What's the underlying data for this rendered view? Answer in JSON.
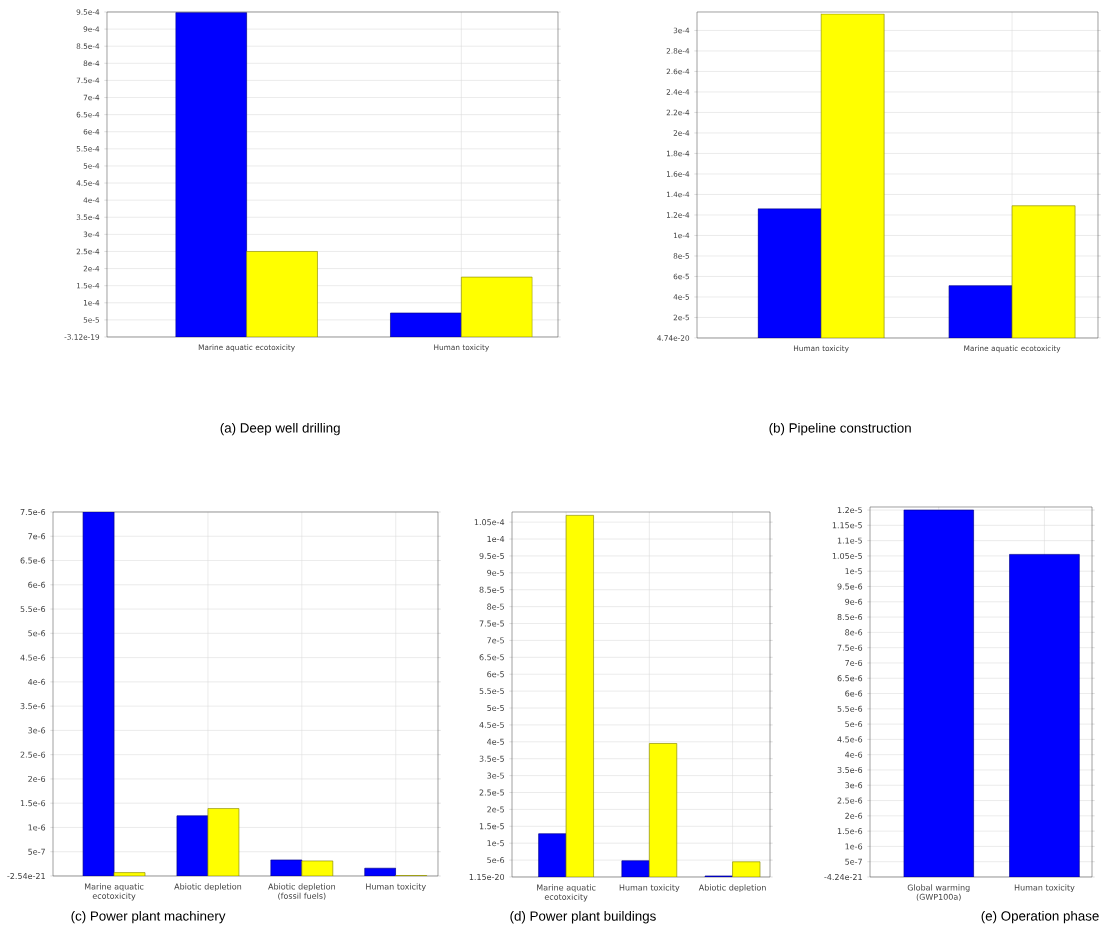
{
  "chart_data": [
    {
      "type": "bar",
      "title": "(a) Deep well drilling",
      "categories": [
        "Marine aquatic ecotoxicity",
        "Human toxicity"
      ],
      "series": [
        {
          "color": "#0000ff",
          "values": [
            0.000948,
            7e-05
          ]
        },
        {
          "color": "#ffff00",
          "values": [
            0.00025,
            0.000175
          ]
        }
      ],
      "ylim": [
        -3.12e-19,
        0.00095
      ],
      "yticks": [
        {
          "value": -3.12e-19,
          "label": "-3.12e-19"
        },
        {
          "value": 5e-05,
          "label": "5e-5"
        },
        {
          "value": 0.0001,
          "label": "1e-4"
        },
        {
          "value": 0.00015,
          "label": "1.5e-4"
        },
        {
          "value": 0.0002,
          "label": "2e-4"
        },
        {
          "value": 0.00025,
          "label": "2.5e-4"
        },
        {
          "value": 0.0003,
          "label": "3e-4"
        },
        {
          "value": 0.00035,
          "label": "3.5e-4"
        },
        {
          "value": 0.0004,
          "label": "4e-4"
        },
        {
          "value": 0.00045,
          "label": "4.5e-4"
        },
        {
          "value": 0.0005,
          "label": "5e-4"
        },
        {
          "value": 0.00055,
          "label": "5.5e-4"
        },
        {
          "value": 0.0006,
          "label": "6e-4"
        },
        {
          "value": 0.00065,
          "label": "6.5e-4"
        },
        {
          "value": 0.0007,
          "label": "7e-4"
        },
        {
          "value": 0.00075,
          "label": "7.5e-4"
        },
        {
          "value": 0.0008,
          "label": "8e-4"
        },
        {
          "value": 0.00085,
          "label": "8.5e-4"
        },
        {
          "value": 0.0009,
          "label": "9e-4"
        },
        {
          "value": 0.00095,
          "label": "9.5e-4"
        }
      ],
      "grid": true
    },
    {
      "type": "bar",
      "title": "(b) Pipeline construction",
      "categories": [
        "Human toxicity",
        "Marine aquatic ecotoxicity"
      ],
      "series": [
        {
          "color": "#0000ff",
          "values": [
            0.000126,
            5.1e-05
          ]
        },
        {
          "color": "#ffff00",
          "values": [
            0.000316,
            0.000129
          ]
        }
      ],
      "ylim": [
        4.74e-20,
        0.000318
      ],
      "yticks": [
        {
          "value": 4.74e-20,
          "label": "4.74e-20"
        },
        {
          "value": 2e-05,
          "label": "2e-5"
        },
        {
          "value": 4e-05,
          "label": "4e-5"
        },
        {
          "value": 6e-05,
          "label": "6e-5"
        },
        {
          "value": 8e-05,
          "label": "8e-5"
        },
        {
          "value": 0.0001,
          "label": "1e-4"
        },
        {
          "value": 0.00012,
          "label": "1.2e-4"
        },
        {
          "value": 0.00014,
          "label": "1.4e-4"
        },
        {
          "value": 0.00016,
          "label": "1.6e-4"
        },
        {
          "value": 0.00018,
          "label": "1.8e-4"
        },
        {
          "value": 0.0002,
          "label": "2e-4"
        },
        {
          "value": 0.00022,
          "label": "2.2e-4"
        },
        {
          "value": 0.00024,
          "label": "2.4e-4"
        },
        {
          "value": 0.00026,
          "label": "2.6e-4"
        },
        {
          "value": 0.00028,
          "label": "2.8e-4"
        },
        {
          "value": 0.0003,
          "label": "3e-4"
        }
      ],
      "grid": true
    },
    {
      "type": "bar",
      "title": "(c) Power plant machinery",
      "categories": [
        "Marine aquatic ecotoxicity",
        "Abiotic depletion",
        "Abiotic depletion (fossil fuels)",
        "Human toxicity"
      ],
      "series": [
        {
          "color": "#0000ff",
          "values": [
            7.5e-06,
            1.24e-06,
            3.3e-07,
            1.6e-07
          ]
        },
        {
          "color": "#ffff00",
          "values": [
            7e-08,
            1.39e-06,
            3.1e-07,
            1e-08
          ]
        }
      ],
      "ylim": [
        -2.54e-21,
        7.5e-06
      ],
      "yticks": [
        {
          "value": -2.54e-21,
          "label": "-2.54e-21"
        },
        {
          "value": 5e-07,
          "label": "5e-7"
        },
        {
          "value": 1e-06,
          "label": "1e-6"
        },
        {
          "value": 1.5e-06,
          "label": "1.5e-6"
        },
        {
          "value": 2e-06,
          "label": "2e-6"
        },
        {
          "value": 2.5e-06,
          "label": "2.5e-6"
        },
        {
          "value": 3e-06,
          "label": "3e-6"
        },
        {
          "value": 3.5e-06,
          "label": "3.5e-6"
        },
        {
          "value": 4e-06,
          "label": "4e-6"
        },
        {
          "value": 4.5e-06,
          "label": "4.5e-6"
        },
        {
          "value": 5e-06,
          "label": "5e-6"
        },
        {
          "value": 5.5e-06,
          "label": "5.5e-6"
        },
        {
          "value": 6e-06,
          "label": "6e-6"
        },
        {
          "value": 6.5e-06,
          "label": "6.5e-6"
        },
        {
          "value": 7e-06,
          "label": "7e-6"
        },
        {
          "value": 7.5e-06,
          "label": "7.5e-6"
        }
      ],
      "grid": true
    },
    {
      "type": "bar",
      "title": "(d) Power plant buildings",
      "categories": [
        "Marine aquatic ecotoxicity",
        "Human toxicity",
        "Abiotic depletion"
      ],
      "series": [
        {
          "color": "#0000ff",
          "values": [
            1.28e-05,
            4.8e-06,
            3e-07
          ]
        },
        {
          "color": "#ffff00",
          "values": [
            0.000107,
            3.95e-05,
            4.5e-06
          ]
        }
      ],
      "ylim": [
        1.15e-20,
        0.000108
      ],
      "yticks": [
        {
          "value": 1.15e-20,
          "label": "1.15e-20"
        },
        {
          "value": 5e-06,
          "label": "5e-6"
        },
        {
          "value": 1e-05,
          "label": "1e-5"
        },
        {
          "value": 1.5e-05,
          "label": "1.5e-5"
        },
        {
          "value": 2e-05,
          "label": "2e-5"
        },
        {
          "value": 2.5e-05,
          "label": "2.5e-5"
        },
        {
          "value": 3e-05,
          "label": "3e-5"
        },
        {
          "value": 3.5e-05,
          "label": "3.5e-5"
        },
        {
          "value": 4e-05,
          "label": "4e-5"
        },
        {
          "value": 4.5e-05,
          "label": "4.5e-5"
        },
        {
          "value": 5e-05,
          "label": "5e-5"
        },
        {
          "value": 5.5e-05,
          "label": "5.5e-5"
        },
        {
          "value": 6e-05,
          "label": "6e-5"
        },
        {
          "value": 6.5e-05,
          "label": "6.5e-5"
        },
        {
          "value": 7e-05,
          "label": "7e-5"
        },
        {
          "value": 7.5e-05,
          "label": "7.5e-5"
        },
        {
          "value": 8e-05,
          "label": "8e-5"
        },
        {
          "value": 8.5e-05,
          "label": "8.5e-5"
        },
        {
          "value": 9e-05,
          "label": "9e-5"
        },
        {
          "value": 9.5e-05,
          "label": "9.5e-5"
        },
        {
          "value": 0.0001,
          "label": "1e-4"
        },
        {
          "value": 0.000105,
          "label": "1.05e-4"
        }
      ],
      "grid": true
    },
    {
      "type": "bar",
      "title": "(e) Operation phase",
      "categories": [
        "Global warming (GWP100a)",
        "Human toxicity"
      ],
      "series": [
        {
          "color": "#0000ff",
          "values": [
            1.2e-05,
            1.055e-05
          ]
        }
      ],
      "ylim": [
        -4.24e-21,
        1.21e-05
      ],
      "yticks": [
        {
          "value": -4.24e-21,
          "label": "-4.24e-21"
        },
        {
          "value": 5e-07,
          "label": "5e-7"
        },
        {
          "value": 1e-06,
          "label": "1e-6"
        },
        {
          "value": 1.5e-06,
          "label": "1.5e-6"
        },
        {
          "value": 2e-06,
          "label": "2e-6"
        },
        {
          "value": 2.5e-06,
          "label": "2.5e-6"
        },
        {
          "value": 3e-06,
          "label": "3e-6"
        },
        {
          "value": 3.5e-06,
          "label": "3.5e-6"
        },
        {
          "value": 4e-06,
          "label": "4e-6"
        },
        {
          "value": 4.5e-06,
          "label": "4.5e-6"
        },
        {
          "value": 5e-06,
          "label": "5e-6"
        },
        {
          "value": 5.5e-06,
          "label": "5.5e-6"
        },
        {
          "value": 6e-06,
          "label": "6e-6"
        },
        {
          "value": 6.5e-06,
          "label": "6.5e-6"
        },
        {
          "value": 7e-06,
          "label": "7e-6"
        },
        {
          "value": 7.5e-06,
          "label": "7.5e-6"
        },
        {
          "value": 8e-06,
          "label": "8e-6"
        },
        {
          "value": 8.5e-06,
          "label": "8.5e-6"
        },
        {
          "value": 9e-06,
          "label": "9e-6"
        },
        {
          "value": 9.5e-06,
          "label": "9.5e-6"
        },
        {
          "value": 1e-05,
          "label": "1e-5"
        },
        {
          "value": 1.05e-05,
          "label": "1.05e-5"
        },
        {
          "value": 1.1e-05,
          "label": "1.1e-5"
        },
        {
          "value": 1.15e-05,
          "label": "1.15e-5"
        },
        {
          "value": 1.2e-05,
          "label": "1.2e-5"
        }
      ],
      "grid": true
    }
  ]
}
